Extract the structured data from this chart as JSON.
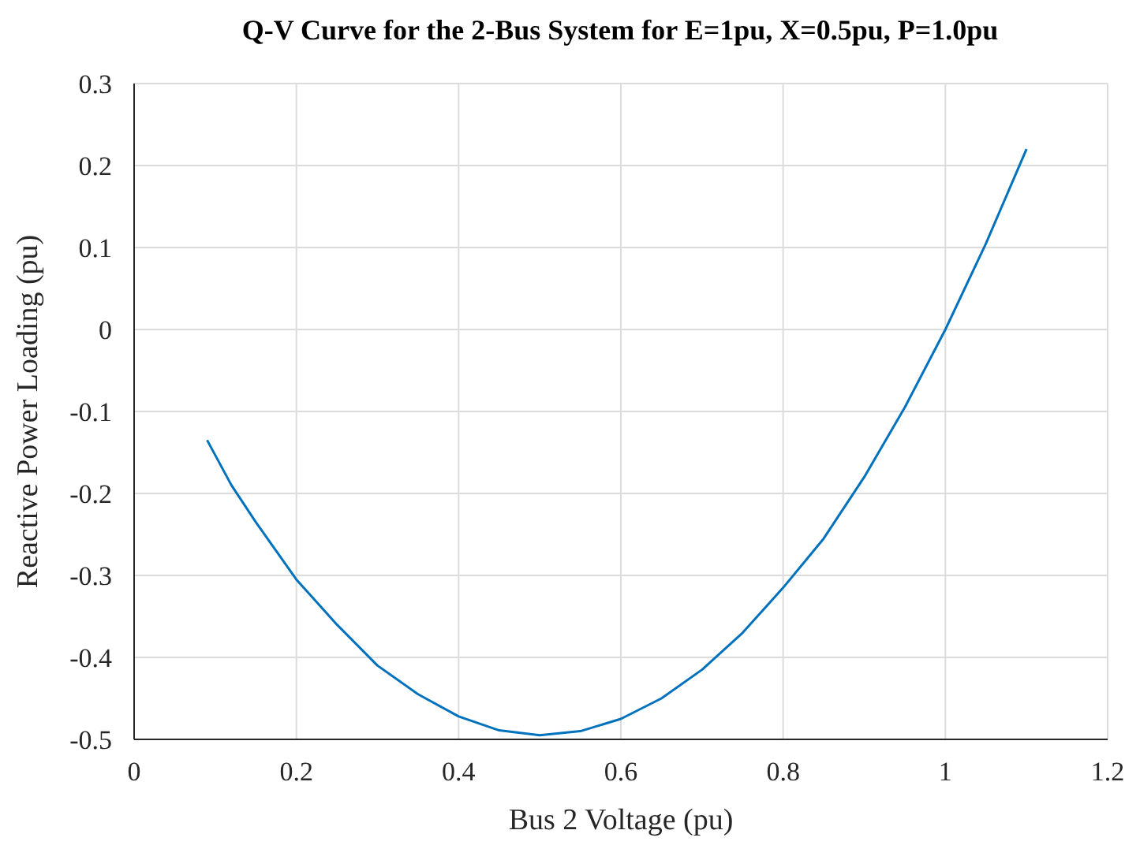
{
  "chart_data": {
    "type": "line",
    "title": "Q-V Curve for the 2-Bus System for E=1pu, X=0.5pu, P=1.0pu",
    "xlabel": "Bus 2 Voltage (pu)",
    "ylabel": "Reactive Power Loading (pu)",
    "x": [
      0.09,
      0.12,
      0.15,
      0.2,
      0.25,
      0.3,
      0.35,
      0.4,
      0.45,
      0.5,
      0.55,
      0.6,
      0.65,
      0.7,
      0.75,
      0.8,
      0.85,
      0.9,
      0.95,
      1.0,
      1.05,
      1.1
    ],
    "series": [
      {
        "color": "#0072bd",
        "values": [
          -0.135,
          -0.19,
          -0.235,
          -0.305,
          -0.36,
          -0.41,
          -0.445,
          -0.472,
          -0.489,
          -0.495,
          -0.49,
          -0.475,
          -0.45,
          -0.415,
          -0.37,
          -0.315,
          -0.255,
          -0.18,
          -0.095,
          0.0,
          0.105,
          0.22
        ]
      }
    ],
    "xlim": [
      0,
      1.2
    ],
    "xticks": [
      0,
      0.2,
      0.4,
      0.6,
      0.8,
      1,
      1.2
    ],
    "ylim": [
      -0.5,
      0.3
    ],
    "yticks": [
      -0.5,
      -0.4,
      -0.3,
      -0.2,
      -0.1,
      0,
      0.1,
      0.2,
      0.3
    ],
    "grid": true,
    "marker": "none",
    "line_style": "solid",
    "legend": false
  }
}
